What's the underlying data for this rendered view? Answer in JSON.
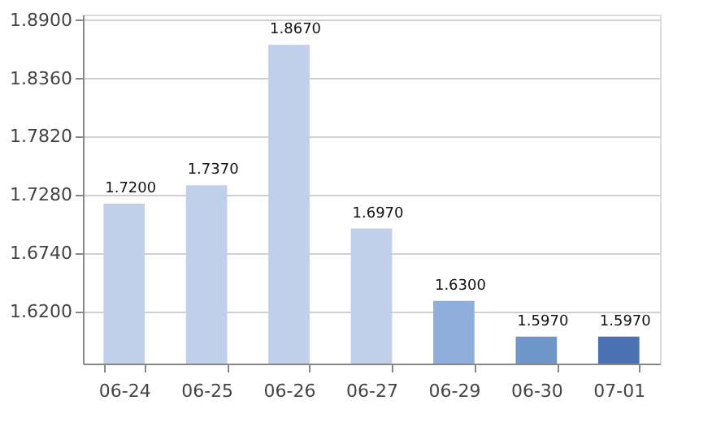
{
  "chart_data": {
    "type": "bar",
    "categories": [
      "06-24",
      "06-25",
      "06-26",
      "06-27",
      "06-29",
      "06-30",
      "07-01"
    ],
    "values": [
      1.72,
      1.737,
      1.867,
      1.697,
      1.63,
      1.597,
      1.597
    ],
    "colors": [
      "#c0d0ea",
      "#c0d0ea",
      "#c0d0ea",
      "#c0d0ea",
      "#8eaedb",
      "#6f97c8",
      "#4a72b0"
    ],
    "value_labels": [
      "1.7200",
      "1.7370",
      "1.8670",
      "1.6970",
      "1.6300",
      "1.5970",
      "1.5970"
    ],
    "ylim": [
      1.572,
      1.895
    ],
    "yticks": [
      {
        "value": 1.62,
        "label": "1.6200"
      },
      {
        "value": 1.674,
        "label": "1.6740"
      },
      {
        "value": 1.728,
        "label": "1.7280"
      },
      {
        "value": 1.782,
        "label": "1.7820"
      },
      {
        "value": 1.836,
        "label": "1.8360"
      },
      {
        "value": 1.89,
        "label": "1.8900"
      }
    ],
    "grid": "y"
  }
}
